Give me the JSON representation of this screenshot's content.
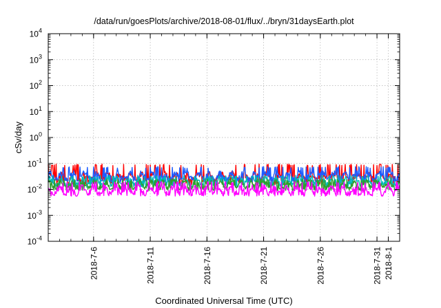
{
  "chart_data": {
    "type": "line",
    "title": "/data/run/goesPlots/archive/2018-08-01/flux/../bryn/31daysEarth.plot",
    "xlabel": "Coordinated Universal Time (UTC)",
    "ylabel": "cSv/day",
    "yscale": "log",
    "ylim": [
      0.0001,
      10000
    ],
    "y_ticks": [
      {
        "value": 0.0001,
        "base": "10",
        "exp": "-4"
      },
      {
        "value": 0.001,
        "base": "10",
        "exp": "-3"
      },
      {
        "value": 0.01,
        "base": "10",
        "exp": "-2"
      },
      {
        "value": 0.1,
        "base": "10",
        "exp": "-1"
      },
      {
        "value": 1,
        "base": "10",
        "exp": "0"
      },
      {
        "value": 10,
        "base": "10",
        "exp": "1"
      },
      {
        "value": 100,
        "base": "10",
        "exp": "2"
      },
      {
        "value": 1000,
        "base": "10",
        "exp": "3"
      },
      {
        "value": 10000,
        "base": "10",
        "exp": "4"
      }
    ],
    "xlim": [
      "2018-07-02",
      "2018-08-02"
    ],
    "x_ticks": [
      "2018-7-6",
      "2018-7-11",
      "2018-7-16",
      "2018-7-21",
      "2018-7-26",
      "2018-7-31",
      "2018-8-1"
    ],
    "grid": true,
    "series": [
      {
        "color": "#ff0000",
        "baseline": 0.03,
        "peak": 0.095,
        "trough": 0.015
      },
      {
        "color": "#1e5cff",
        "baseline": 0.032,
        "peak": 0.075,
        "trough": 0.018
      },
      {
        "color": "#00b8b8",
        "baseline": 0.02,
        "peak": 0.035,
        "trough": 0.012
      },
      {
        "color": "#2e9e2e",
        "baseline": 0.015,
        "peak": 0.025,
        "trough": 0.009
      },
      {
        "color": "#ff00ff",
        "baseline": 0.009,
        "peak": 0.02,
        "trough": 0.0055
      }
    ]
  }
}
